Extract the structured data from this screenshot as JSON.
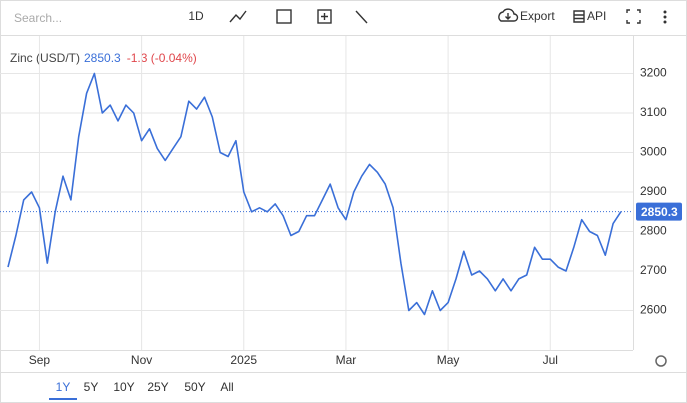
{
  "toolbar": {
    "search": "Search...",
    "interval": "1D",
    "export": "Export",
    "api": "API"
  },
  "ranges": [
    "1Y",
    "5Y",
    "10Y",
    "25Y",
    "50Y",
    "All"
  ],
  "chart_data": {
    "type": "line",
    "title": "Zinc (USD/T)",
    "change_text": "-1.3 (-0.04%)",
    "categories": [
      null,
      null,
      null,
      null,
      "Sep",
      null,
      null,
      null,
      null,
      null,
      null,
      null,
      null,
      null,
      null,
      null,
      null,
      "Nov",
      null,
      null,
      null,
      null,
      null,
      null,
      null,
      null,
      null,
      null,
      null,
      null,
      "2025",
      null,
      null,
      null,
      null,
      null,
      null,
      null,
      null,
      null,
      null,
      null,
      null,
      "Mar",
      null,
      null,
      null,
      null,
      null,
      null,
      null,
      null,
      null,
      null,
      null,
      null,
      "May",
      null,
      null,
      null,
      null,
      null,
      null,
      null,
      null,
      null,
      null,
      null,
      null,
      "Jul",
      null,
      null,
      null,
      null,
      null,
      null,
      null,
      null,
      null
    ],
    "series": [
      {
        "name": "Zinc",
        "color": "#3a6fd8",
        "values": [
          2710,
          2790,
          2880,
          2900,
          2860,
          2720,
          2850,
          2940,
          2880,
          3040,
          3150,
          3200,
          3100,
          3120,
          3080,
          3120,
          3100,
          3030,
          3060,
          3010,
          2980,
          3010,
          3040,
          3130,
          3110,
          3140,
          3090,
          3000,
          2990,
          3030,
          2900,
          2850,
          2860,
          2850,
          2870,
          2840,
          2790,
          2800,
          2840,
          2840,
          2880,
          2920,
          2860,
          2830,
          2900,
          2940,
          2970,
          2950,
          2920,
          2860,
          2720,
          2600,
          2620,
          2590,
          2650,
          2600,
          2620,
          2680,
          2750,
          2690,
          2700,
          2680,
          2650,
          2680,
          2650,
          2680,
          2690,
          2760,
          2730,
          2730,
          2710,
          2700,
          2760,
          2830,
          2800,
          2790,
          2740,
          2820,
          2850.3
        ]
      }
    ],
    "ylim": [
      2500,
      3295
    ],
    "yticks": [
      2600,
      2700,
      2800,
      2900,
      3000,
      3100,
      3200
    ],
    "grid": true
  }
}
